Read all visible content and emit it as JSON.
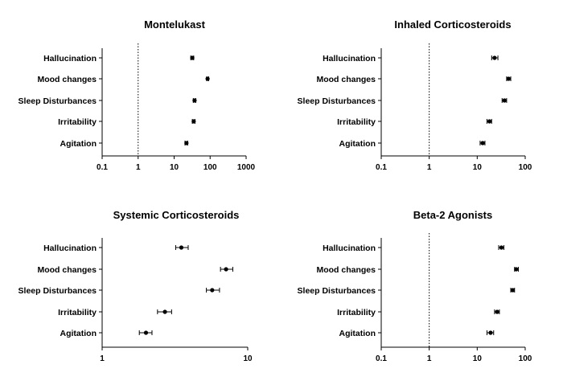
{
  "chart_data": [
    {
      "type": "forest",
      "title": "Montelukast",
      "x_scale": "log",
      "xlim": [
        0.1,
        1000
      ],
      "x_ticks": [
        "0.1",
        "1",
        "10",
        "100",
        "1000"
      ],
      "reference_line": 1,
      "categories": [
        "Hallucination",
        "Mood changes",
        "Sleep Disturbances",
        "Irritability",
        "Agitation"
      ],
      "points": [
        {
          "label": "Hallucination",
          "value": 32,
          "low": 29,
          "high": 35
        },
        {
          "label": "Mood changes",
          "value": 85,
          "low": 80,
          "high": 91
        },
        {
          "label": "Sleep Disturbances",
          "value": 37,
          "low": 34,
          "high": 40
        },
        {
          "label": "Irritability",
          "value": 35,
          "low": 32,
          "high": 38
        },
        {
          "label": "Agitation",
          "value": 22,
          "low": 20,
          "high": 24
        }
      ]
    },
    {
      "type": "forest",
      "title": "Inhaled Corticosteroids",
      "x_scale": "log",
      "xlim": [
        0.1,
        100
      ],
      "x_ticks": [
        "0.1",
        "1",
        "10",
        "100"
      ],
      "reference_line": 1,
      "categories": [
        "Hallucination",
        "Mood changes",
        "Sleep Disturbances",
        "Irritability",
        "Agitation"
      ],
      "points": [
        {
          "label": "Hallucination",
          "value": 23,
          "low": 20,
          "high": 27
        },
        {
          "label": "Mood changes",
          "value": 45,
          "low": 41,
          "high": 50
        },
        {
          "label": "Sleep Disturbances",
          "value": 37,
          "low": 33,
          "high": 41
        },
        {
          "label": "Irritability",
          "value": 18,
          "low": 16,
          "high": 20
        },
        {
          "label": "Agitation",
          "value": 13,
          "low": 11.5,
          "high": 14.5
        }
      ]
    },
    {
      "type": "forest",
      "title": "Systemic Corticosteroids",
      "x_scale": "log",
      "xlim": [
        1,
        10
      ],
      "x_ticks": [
        "1",
        "10"
      ],
      "reference_line": null,
      "categories": [
        "Hallucination",
        "Mood changes",
        "Sleep Disturbances",
        "Irritability",
        "Agitation"
      ],
      "points": [
        {
          "label": "Hallucination",
          "value": 3.5,
          "low": 3.2,
          "high": 3.9
        },
        {
          "label": "Mood changes",
          "value": 7.1,
          "low": 6.5,
          "high": 7.9
        },
        {
          "label": "Sleep Disturbances",
          "value": 5.7,
          "low": 5.2,
          "high": 6.4
        },
        {
          "label": "Irritability",
          "value": 2.7,
          "low": 2.4,
          "high": 3.0
        },
        {
          "label": "Agitation",
          "value": 2.0,
          "low": 1.8,
          "high": 2.2
        }
      ]
    },
    {
      "type": "forest",
      "title": "Beta-2 Agonists",
      "x_scale": "log",
      "xlim": [
        0.1,
        100
      ],
      "x_ticks": [
        "0.1",
        "1",
        "10",
        "100"
      ],
      "reference_line": 1,
      "categories": [
        "Hallucination",
        "Mood changes",
        "Sleep Disturbances",
        "Irritability",
        "Agitation"
      ],
      "points": [
        {
          "label": "Hallucination",
          "value": 32,
          "low": 28,
          "high": 36
        },
        {
          "label": "Mood changes",
          "value": 65,
          "low": 60,
          "high": 72
        },
        {
          "label": "Sleep Disturbances",
          "value": 55,
          "low": 50,
          "high": 60
        },
        {
          "label": "Irritability",
          "value": 26,
          "low": 23,
          "high": 29
        },
        {
          "label": "Agitation",
          "value": 19,
          "low": 16,
          "high": 22
        }
      ]
    }
  ]
}
